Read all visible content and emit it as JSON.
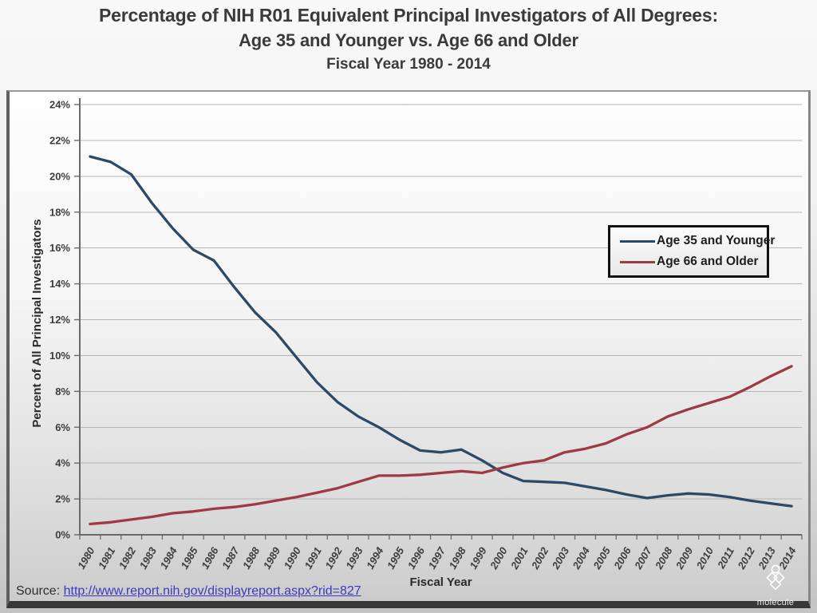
{
  "page": {
    "title_line1": "Percentage of NIH R01 Equivalent Principal Investigators of All Degrees:",
    "title_line2": "Age 35 and Younger vs. Age 66 and Older",
    "title_line3": "Fiscal Year 1980 - 2014",
    "source_label": "Source:",
    "source_url": "http://www.report.nih.gov/displayreport.aspx?rid=827",
    "watermark": "molecule"
  },
  "chart_data": {
    "type": "line",
    "title": "Percentage of NIH R01 Equivalent Principal Investigators of All Degrees: Age 35 and Younger vs. Age 66 and Older, Fiscal Year 1980 - 2014",
    "xlabel": "Fiscal Year",
    "ylabel": "Percent of All Principal Investigators",
    "ylim": [
      0,
      24
    ],
    "ytick_step": 2,
    "ytick_suffix": "%",
    "grid": true,
    "legend_position": "inside-right",
    "categories": [
      1980,
      1981,
      1982,
      1983,
      1984,
      1985,
      1986,
      1987,
      1988,
      1989,
      1990,
      1991,
      1992,
      1993,
      1994,
      1995,
      1996,
      1997,
      1998,
      1999,
      2000,
      2001,
      2002,
      2003,
      2004,
      2005,
      2006,
      2007,
      2008,
      2009,
      2010,
      2011,
      2012,
      2013,
      2014
    ],
    "series": [
      {
        "name": "Age 35 and Younger",
        "color": "#2c4a68",
        "values": [
          21.1,
          20.8,
          20.1,
          18.5,
          17.1,
          15.9,
          15.3,
          13.8,
          12.4,
          11.3,
          9.9,
          8.5,
          7.4,
          6.6,
          6.0,
          5.3,
          4.7,
          4.6,
          4.75,
          4.15,
          3.45,
          3.0,
          2.95,
          2.9,
          2.7,
          2.5,
          2.25,
          2.05,
          2.2,
          2.3,
          2.25,
          2.1,
          1.9,
          1.75,
          1.6
        ]
      },
      {
        "name": "Age 66 and Older",
        "color": "#9e3a44",
        "values": [
          0.6,
          0.7,
          0.85,
          1.0,
          1.2,
          1.3,
          1.45,
          1.55,
          1.7,
          1.9,
          2.1,
          2.35,
          2.6,
          2.95,
          3.3,
          3.3,
          3.35,
          3.45,
          3.55,
          3.45,
          3.75,
          4.0,
          4.15,
          4.6,
          4.8,
          5.1,
          5.6,
          6.0,
          6.6,
          7.0,
          7.35,
          7.7,
          8.25,
          8.85,
          9.4
        ]
      }
    ],
    "axis_style": {
      "grid_color": "#b5b5b5",
      "axis_color": "#6a6a6a",
      "tick_label_color": "#3d3d3d"
    }
  }
}
